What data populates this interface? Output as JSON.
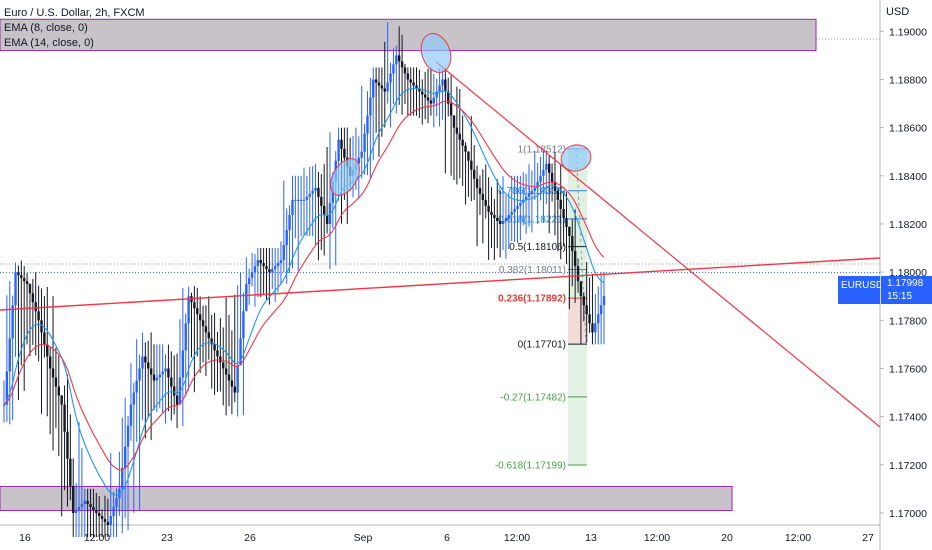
{
  "legend": {
    "title": "Euro / U.S. Dollar, 2h, FXCM",
    "ema1": "EMA (8, close, 0)",
    "ema2": "EMA (14, close, 0)"
  },
  "currency_button": "USD",
  "price_tag": {
    "symbol": "EURUSD",
    "price": "1.17998",
    "countdown": "15:15"
  },
  "colors": {
    "up": "#2962ff",
    "down": "#131722",
    "ema_fast": "#2196f3",
    "ema_slow": "#f23645",
    "trendline": "#f23645",
    "zone_fill": "#c8c3c9",
    "zone_border": "#9c27b0",
    "ellipse": "#90caf9",
    "fib_red": "#e53935",
    "fib_green": "#43a047",
    "fib_blue": "#1e88e5"
  },
  "chart_data": {
    "type": "candlestick",
    "ylim": [
      1.1695,
      1.1913
    ],
    "y_ticks": [
      "1.19000",
      "1.18800",
      "1.18600",
      "1.18400",
      "1.18200",
      "1.18000",
      "1.17800",
      "1.17600",
      "1.17400",
      "1.17200",
      "1.17000"
    ],
    "x_ticks": [
      "16",
      "12:00",
      "23",
      "26",
      "Sep",
      "6",
      "12:00",
      "13",
      "12:00",
      "20",
      "12:00",
      "27"
    ],
    "last_price": 1.17998,
    "zones": [
      {
        "low": 1.1892,
        "high": 1.1905
      },
      {
        "low": 1.1701,
        "high": 1.1711
      }
    ],
    "fib_levels": [
      {
        "ratio": "1",
        "price": "1.18512",
        "label": "1(1.18512)"
      },
      {
        "ratio": "0.786",
        "price": "1.18338",
        "label": "0.786(1.18338)"
      },
      {
        "ratio": "0.618",
        "price": "1.18221",
        "label": "0.618(1.18221)"
      },
      {
        "ratio": "0.5",
        "price": "1.18106",
        "label": "0.5(1.18106)"
      },
      {
        "ratio": "0.382",
        "price": "1.18011",
        "label": "0.382(1.18011)"
      },
      {
        "ratio": "0.236",
        "price": "1.17892",
        "label": "0.236(1.17892)"
      },
      {
        "ratio": "0",
        "price": "1.17701",
        "label": "0(1.17701)"
      },
      {
        "ratio": "-0.27",
        "price": "1.17482",
        "label": "-0.27(1.17482)"
      },
      {
        "ratio": "-0.618",
        "price": "1.17199",
        "label": "-0.618(1.17199)"
      }
    ],
    "path_points": [
      [
        1.1745,
        1.1735,
        1.1755
      ],
      [
        1.18,
        1.174,
        1.1805
      ],
      [
        1.1795,
        1.177,
        1.18
      ],
      [
        1.178,
        1.1765,
        1.1795
      ],
      [
        1.176,
        1.174,
        1.179
      ],
      [
        1.1745,
        1.172,
        1.176
      ],
      [
        1.17,
        1.169,
        1.174
      ],
      [
        1.1705,
        1.169,
        1.171
      ],
      [
        1.17,
        1.169,
        1.171
      ],
      [
        1.1695,
        1.169,
        1.17
      ],
      [
        1.171,
        1.169,
        1.1725
      ],
      [
        1.1745,
        1.17,
        1.175
      ],
      [
        1.1765,
        1.173,
        1.1775
      ],
      [
        1.1755,
        1.174,
        1.177
      ],
      [
        1.176,
        1.1745,
        1.177
      ],
      [
        1.1745,
        1.1735,
        1.1765
      ],
      [
        1.179,
        1.175,
        1.1795
      ],
      [
        1.178,
        1.1765,
        1.179
      ],
      [
        1.177,
        1.1755,
        1.1785
      ],
      [
        1.176,
        1.1745,
        1.1775
      ],
      [
        1.175,
        1.174,
        1.179
      ],
      [
        1.1795,
        1.1785,
        1.18
      ],
      [
        1.1805,
        1.1795,
        1.181
      ],
      [
        1.18,
        1.1785,
        1.181
      ],
      [
        1.1805,
        1.1795,
        1.181
      ],
      [
        1.183,
        1.18,
        1.184
      ],
      [
        1.183,
        1.1815,
        1.184
      ],
      [
        1.1835,
        1.1815,
        1.1845
      ],
      [
        1.182,
        1.18,
        1.184
      ],
      [
        1.1855,
        1.182,
        1.186
      ],
      [
        1.184,
        1.183,
        1.186
      ],
      [
        1.185,
        1.1835,
        1.1855
      ],
      [
        1.188,
        1.1845,
        1.1885
      ],
      [
        1.1875,
        1.186,
        1.1885
      ],
      [
        1.189,
        1.187,
        1.1905
      ],
      [
        1.188,
        1.1865,
        1.1885
      ],
      [
        1.1875,
        1.1865,
        1.1885
      ],
      [
        1.187,
        1.186,
        1.188
      ],
      [
        1.188,
        1.1865,
        1.1885
      ],
      [
        1.186,
        1.184,
        1.188
      ],
      [
        1.185,
        1.1835,
        1.1865
      ],
      [
        1.1835,
        1.1825,
        1.1845
      ],
      [
        1.1825,
        1.181,
        1.184
      ],
      [
        1.182,
        1.1805,
        1.183
      ],
      [
        1.1825,
        1.181,
        1.184
      ],
      [
        1.183,
        1.1815,
        1.184
      ],
      [
        1.1835,
        1.182,
        1.1845
      ],
      [
        1.1845,
        1.183,
        1.1851
      ],
      [
        1.183,
        1.1815,
        1.1845
      ],
      [
        1.1815,
        1.18,
        1.183
      ],
      [
        1.179,
        1.178,
        1.1805
      ],
      [
        1.1775,
        1.177,
        1.179
      ],
      [
        1.179,
        1.177,
        1.18
      ]
    ]
  }
}
